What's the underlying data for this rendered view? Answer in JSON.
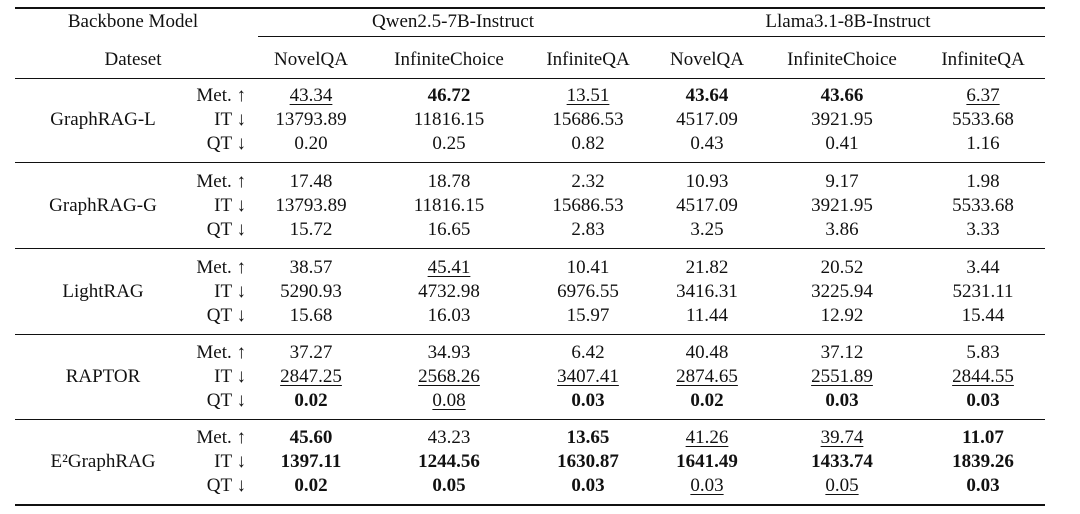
{
  "header": {
    "backbone_label": "Backbone Model",
    "models": [
      "Qwen2.5-7B-Instruct",
      "Llama3.1-8B-Instruct"
    ],
    "dataset_label": "Dateset",
    "datasets": [
      "NovelQA",
      "InfiniteChoice",
      "InfiniteQA",
      "NovelQA",
      "InfiniteChoice",
      "InfiniteQA"
    ]
  },
  "groups": [
    {
      "method": "GraphRAG-L",
      "rows": [
        {
          "metric": "Met. ↑",
          "cells": [
            {
              "text": "43.34",
              "style": "underline"
            },
            {
              "text": "46.72",
              "style": "bold"
            },
            {
              "text": "13.51",
              "style": "underline"
            },
            {
              "text": "43.64",
              "style": "bold"
            },
            {
              "text": "43.66",
              "style": "bold"
            },
            {
              "text": "6.37",
              "style": "underline"
            }
          ]
        },
        {
          "metric": "IT ↓",
          "cells": [
            "13793.89",
            "11816.15",
            "15686.53",
            "4517.09",
            "3921.95",
            "5533.68"
          ]
        },
        {
          "metric": "QT ↓",
          "cells": [
            "0.20",
            "0.25",
            "0.82",
            "0.43",
            "0.41",
            "1.16"
          ]
        }
      ]
    },
    {
      "method": "GraphRAG-G",
      "rows": [
        {
          "metric": "Met. ↑",
          "cells": [
            "17.48",
            "18.78",
            "2.32",
            "10.93",
            "9.17",
            "1.98"
          ]
        },
        {
          "metric": "IT ↓",
          "cells": [
            "13793.89",
            "11816.15",
            "15686.53",
            "4517.09",
            "3921.95",
            "5533.68"
          ]
        },
        {
          "metric": "QT ↓",
          "cells": [
            "15.72",
            "16.65",
            "2.83",
            "3.25",
            "3.86",
            "3.33"
          ]
        }
      ]
    },
    {
      "method": "LightRAG",
      "rows": [
        {
          "metric": "Met. ↑",
          "cells": [
            "38.57",
            {
              "text": "45.41",
              "style": "underline"
            },
            "10.41",
            "21.82",
            "20.52",
            "3.44"
          ]
        },
        {
          "metric": "IT ↓",
          "cells": [
            "5290.93",
            "4732.98",
            "6976.55",
            "3416.31",
            "3225.94",
            "5231.11"
          ]
        },
        {
          "metric": "QT ↓",
          "cells": [
            "15.68",
            "16.03",
            "15.97",
            "11.44",
            "12.92",
            "15.44"
          ]
        }
      ]
    },
    {
      "method": "RAPTOR",
      "rows": [
        {
          "metric": "Met. ↑",
          "cells": [
            "37.27",
            "34.93",
            "6.42",
            "40.48",
            "37.12",
            "5.83"
          ]
        },
        {
          "metric": "IT ↓",
          "cells": [
            {
              "text": "2847.25",
              "style": "underline"
            },
            {
              "text": "2568.26",
              "style": "underline"
            },
            {
              "text": "3407.41",
              "style": "underline"
            },
            {
              "text": "2874.65",
              "style": "underline"
            },
            {
              "text": "2551.89",
              "style": "underline"
            },
            {
              "text": "2844.55",
              "style": "underline"
            }
          ]
        },
        {
          "metric": "QT ↓",
          "cells": [
            {
              "text": "0.02",
              "style": "bold"
            },
            {
              "text": "0.08",
              "style": "underline"
            },
            {
              "text": "0.03",
              "style": "bold"
            },
            {
              "text": "0.02",
              "style": "bold"
            },
            {
              "text": "0.03",
              "style": "bold"
            },
            {
              "text": "0.03",
              "style": "bold"
            }
          ]
        }
      ]
    },
    {
      "method": "E²GraphRAG",
      "rows": [
        {
          "metric": "Met. ↑",
          "cells": [
            {
              "text": "45.60",
              "style": "bold"
            },
            "43.23",
            {
              "text": "13.65",
              "style": "bold"
            },
            {
              "text": "41.26",
              "style": "underline"
            },
            {
              "text": "39.74",
              "style": "underline"
            },
            {
              "text": "11.07",
              "style": "bold"
            }
          ]
        },
        {
          "metric": "IT ↓",
          "cells": [
            {
              "text": "1397.11",
              "style": "bold"
            },
            {
              "text": "1244.56",
              "style": "bold"
            },
            {
              "text": "1630.87",
              "style": "bold"
            },
            {
              "text": "1641.49",
              "style": "bold"
            },
            {
              "text": "1433.74",
              "style": "bold"
            },
            {
              "text": "1839.26",
              "style": "bold"
            }
          ]
        },
        {
          "metric": "QT ↓",
          "cells": [
            {
              "text": "0.02",
              "style": "bold"
            },
            {
              "text": "0.05",
              "style": "bold"
            },
            {
              "text": "0.03",
              "style": "bold"
            },
            {
              "text": "0.03",
              "style": "underline"
            },
            {
              "text": "0.05",
              "style": "underline"
            },
            {
              "text": "0.03",
              "style": "bold"
            }
          ]
        }
      ]
    }
  ]
}
